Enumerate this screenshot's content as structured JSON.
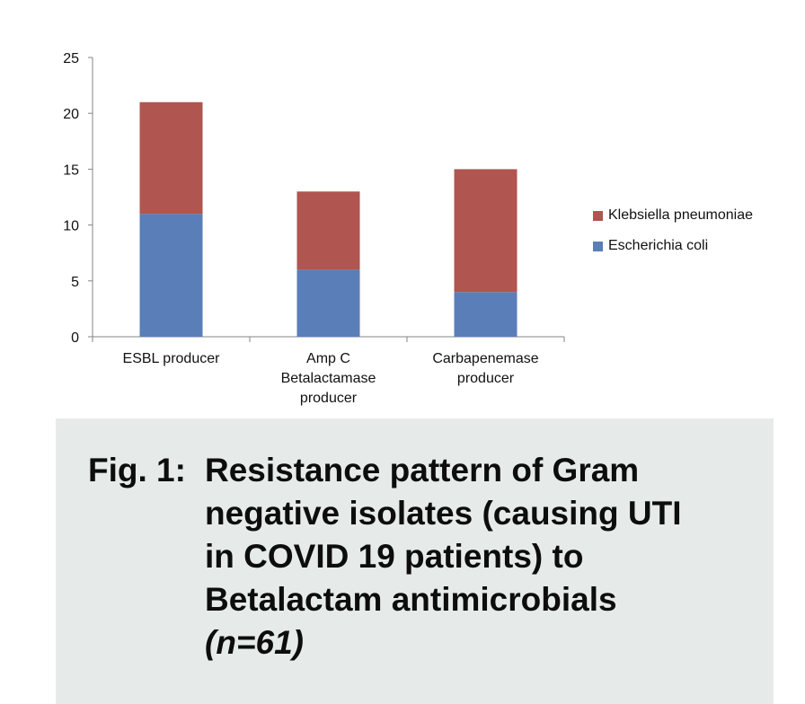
{
  "chart_data": {
    "type": "bar",
    "stacked": true,
    "categories": [
      [
        "ESBL producer"
      ],
      [
        "Amp C",
        "Betalactamase",
        "producer"
      ],
      [
        "Carbapenemase",
        "producer"
      ]
    ],
    "series": [
      {
        "name": "Escherichia coli",
        "values": [
          11,
          6,
          4
        ],
        "color": "#5a7eb8"
      },
      {
        "name": "Klebsiella pneumoniae",
        "values": [
          10,
          7,
          11
        ],
        "color": "#b0554f"
      }
    ],
    "y_ticks": [
      "0",
      "5",
      "10",
      "15",
      "20",
      "25"
    ],
    "ylim": [
      0,
      25
    ],
    "legend_position": "right",
    "grid": false
  },
  "caption": {
    "prefix": "Fig. 1:",
    "text": "Resistance pattern of Gram negative isolates (causing UTI in COVID 19 patients) to Betalactam antimicrobials",
    "n": "(n=61)"
  },
  "colors": {
    "caption_background": "#e6ebea"
  }
}
